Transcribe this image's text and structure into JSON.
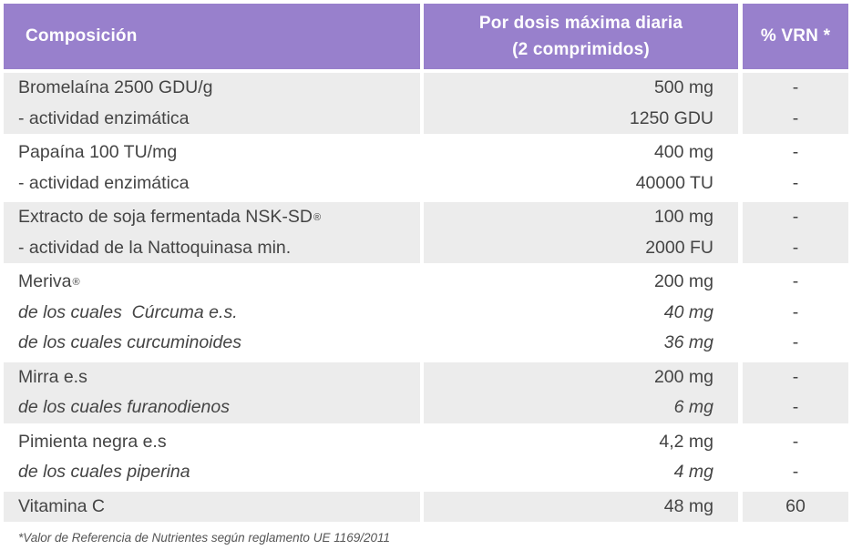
{
  "header": {
    "col1": "Composición",
    "col2_line1": "Por dosis máxima diaria",
    "col2_line2": "(2 comprimidos)",
    "col3": "% VRN *"
  },
  "groups": [
    {
      "rows": [
        {
          "name": "Bromelaína 2500 GDU/g",
          "amount": "500 mg",
          "vrn": "-"
        },
        {
          "name": "- actividad enzimática",
          "amount": "1250 GDU",
          "vrn": "-"
        }
      ]
    },
    {
      "rows": [
        {
          "name": "Papaína 100 TU/mg",
          "amount": "400 mg",
          "vrn": "-"
        },
        {
          "name": "- actividad enzimática",
          "amount": "40000 TU",
          "vrn": "-"
        }
      ]
    },
    {
      "rows": [
        {
          "name": "Extracto de soja fermentada NSK-SD",
          "mark": "®",
          "amount": "100 mg",
          "vrn": "-"
        },
        {
          "name": "- actividad de la Nattoquinasa min.",
          "amount": "2000 FU",
          "vrn": "-"
        }
      ]
    },
    {
      "rows": [
        {
          "name": "Meriva",
          "mark": "®",
          "amount": "200 mg",
          "vrn": "-"
        },
        {
          "name": "de los cuales  Cúrcuma e.s.",
          "amount": "40 mg",
          "vrn": "-"
        },
        {
          "name": "de los cuales curcuminoides",
          "amount": "36 mg",
          "vrn": "-"
        }
      ]
    },
    {
      "rows": [
        {
          "name": "Mirra e.s",
          "amount": "200 mg",
          "vrn": "-"
        },
        {
          "name": "de los cuales furanodienos",
          "amount": "6 mg",
          "vrn": "-"
        }
      ]
    },
    {
      "rows": [
        {
          "name": "Pimienta negra e.s",
          "amount": "4,2 mg",
          "vrn": "-"
        },
        {
          "name": "de los cuales piperina",
          "amount": "4 mg",
          "vrn": "-"
        }
      ]
    },
    {
      "rows": [
        {
          "name": "Vitamina C",
          "amount": "48 mg",
          "vrn": "60"
        }
      ]
    }
  ],
  "footnote": "*Valor de Referencia de Nutrientes según reglamento UE 1169/2011",
  "colors": {
    "header_bg": "#9880cc",
    "header_text": "#ffffff",
    "shaded_row_bg": "#ececec",
    "text": "#444444"
  }
}
